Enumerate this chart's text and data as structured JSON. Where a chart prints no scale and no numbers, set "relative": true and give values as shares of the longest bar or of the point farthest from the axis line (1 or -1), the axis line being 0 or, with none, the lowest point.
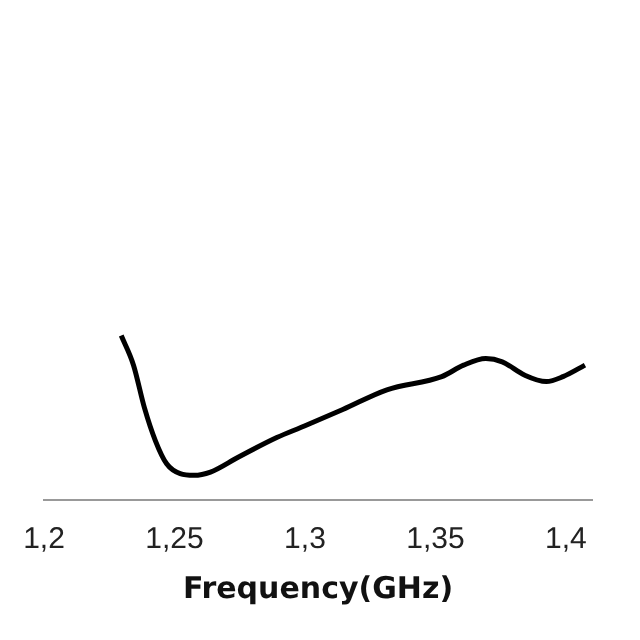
{
  "chart_data": {
    "type": "line",
    "xlabel": "Frequency(GHz)",
    "relative": true,
    "legend": false,
    "marker": "none",
    "line_style": "solid",
    "xlim": [
      1.2,
      1.41
    ],
    "xticks": [
      {
        "value": 1.2,
        "label": "1,2"
      },
      {
        "value": 1.25,
        "label": "1,25"
      },
      {
        "value": 1.3,
        "label": "1,3"
      },
      {
        "value": 1.35,
        "label": "1,35"
      },
      {
        "value": 1.4,
        "label": "1,4"
      }
    ],
    "x": [
      1.2296,
      1.2343,
      1.2385,
      1.2427,
      1.247,
      1.2522,
      1.2575,
      1.2638,
      1.2744,
      1.2892,
      1.2998,
      1.3145,
      1.3314,
      1.3524,
      1.3608,
      1.3693,
      1.3756,
      1.3841,
      1.3925,
      1.3989,
      1.4073
    ],
    "series": [
      {
        "color": "#000000",
        "values": [
          1.0,
          0.82,
          0.56,
          0.36,
          0.22,
          0.16,
          0.15,
          0.17,
          0.26,
          0.38,
          0.45,
          0.55,
          0.67,
          0.75,
          0.82,
          0.86,
          0.84,
          0.76,
          0.72,
          0.75,
          0.82
        ]
      }
    ]
  }
}
